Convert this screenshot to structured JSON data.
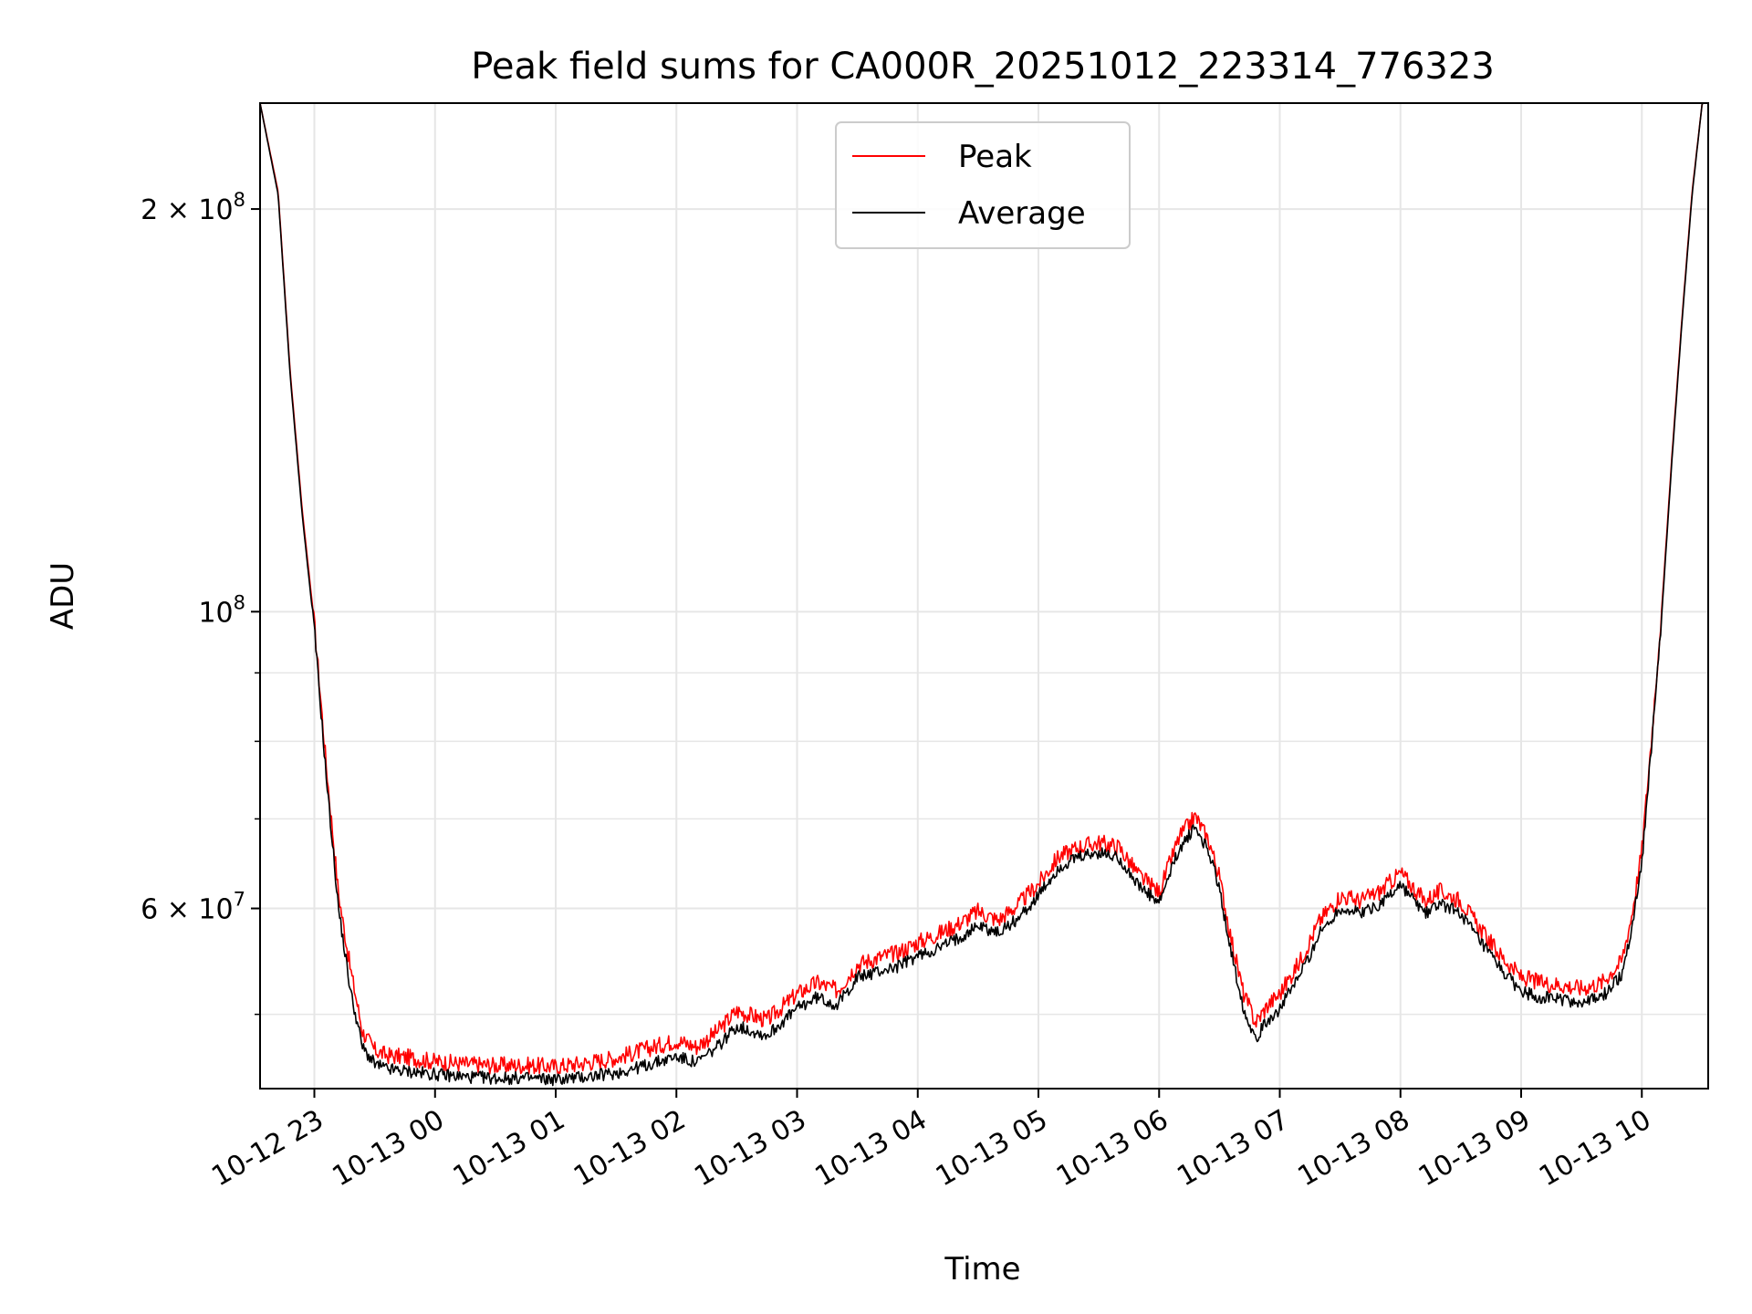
{
  "chart_data": {
    "type": "line",
    "title": "Peak field sums for CA000R_20251012_223314_776323",
    "xlabel": "Time",
    "ylabel": "ADU",
    "yscale": "log",
    "grid": true,
    "legend_position": "top-center",
    "colors": {
      "peak": "#ff0000",
      "average": "#000000",
      "grid": "#e6e6e6"
    },
    "xlim": [
      "2025-10-12 22:33",
      "2025-10-13 10:33"
    ],
    "ylim": [
      44000000,
      240000000
    ],
    "x_ticks": [
      {
        "t": "2025-10-12 23:00",
        "label": "10-12 23"
      },
      {
        "t": "2025-10-13 00:00",
        "label": "10-13 00"
      },
      {
        "t": "2025-10-13 01:00",
        "label": "10-13 01"
      },
      {
        "t": "2025-10-13 02:00",
        "label": "10-13 02"
      },
      {
        "t": "2025-10-13 03:00",
        "label": "10-13 03"
      },
      {
        "t": "2025-10-13 04:00",
        "label": "10-13 04"
      },
      {
        "t": "2025-10-13 05:00",
        "label": "10-13 05"
      },
      {
        "t": "2025-10-13 06:00",
        "label": "10-13 06"
      },
      {
        "t": "2025-10-13 07:00",
        "label": "10-13 07"
      },
      {
        "t": "2025-10-13 08:00",
        "label": "10-13 08"
      },
      {
        "t": "2025-10-13 09:00",
        "label": "10-13 09"
      },
      {
        "t": "2025-10-13 10:00",
        "label": "10-13 10"
      }
    ],
    "y_major_ticks": [
      {
        "value": 60000000,
        "mantissa": "6",
        "exponent": "7"
      },
      {
        "value": 100000000,
        "mantissa": "",
        "exponent": "8"
      },
      {
        "value": 200000000,
        "mantissa": "2",
        "exponent": "8"
      }
    ],
    "y_minor_ticks": [
      50000000,
      70000000,
      80000000,
      90000000
    ],
    "legend": [
      "Peak",
      "Average"
    ],
    "series": [
      {
        "name": "Average",
        "x": [
          "2025-10-12 22:33",
          "2025-10-12 22:42",
          "2025-10-12 22:48",
          "2025-10-12 22:54",
          "2025-10-12 23:00",
          "2025-10-12 23:06",
          "2025-10-12 23:12",
          "2025-10-12 23:18",
          "2025-10-12 23:24",
          "2025-10-12 23:30",
          "2025-10-12 23:36",
          "2025-10-12 23:48",
          "2025-10-13 00:00",
          "2025-10-13 00:15",
          "2025-10-13 00:30",
          "2025-10-13 00:45",
          "2025-10-13 01:00",
          "2025-10-13 01:15",
          "2025-10-13 01:30",
          "2025-10-13 01:45",
          "2025-10-13 02:00",
          "2025-10-13 02:10",
          "2025-10-13 02:20",
          "2025-10-13 02:30",
          "2025-10-13 02:45",
          "2025-10-13 03:00",
          "2025-10-13 03:10",
          "2025-10-13 03:20",
          "2025-10-13 03:30",
          "2025-10-13 03:40",
          "2025-10-13 03:50",
          "2025-10-13 04:00",
          "2025-10-13 04:10",
          "2025-10-13 04:20",
          "2025-10-13 04:30",
          "2025-10-13 04:40",
          "2025-10-13 04:50",
          "2025-10-13 05:00",
          "2025-10-13 05:10",
          "2025-10-13 05:20",
          "2025-10-13 05:30",
          "2025-10-13 05:40",
          "2025-10-13 05:50",
          "2025-10-13 06:00",
          "2025-10-13 06:10",
          "2025-10-13 06:18",
          "2025-10-13 06:25",
          "2025-10-13 06:30",
          "2025-10-13 06:36",
          "2025-10-13 06:42",
          "2025-10-13 06:48",
          "2025-10-13 06:54",
          "2025-10-13 07:00",
          "2025-10-13 07:10",
          "2025-10-13 07:20",
          "2025-10-13 07:30",
          "2025-10-13 07:40",
          "2025-10-13 07:50",
          "2025-10-13 08:00",
          "2025-10-13 08:06",
          "2025-10-13 08:12",
          "2025-10-13 08:20",
          "2025-10-13 08:30",
          "2025-10-13 08:40",
          "2025-10-13 08:50",
          "2025-10-13 09:00",
          "2025-10-13 09:10",
          "2025-10-13 09:20",
          "2025-10-13 09:30",
          "2025-10-13 09:40",
          "2025-10-13 09:50",
          "2025-10-13 09:55",
          "2025-10-13 10:00",
          "2025-10-13 10:05",
          "2025-10-13 10:10",
          "2025-10-13 10:15",
          "2025-10-13 10:20",
          "2025-10-13 10:25",
          "2025-10-13 10:30"
        ],
        "y": [
          240000000,
          205000000,
          150000000,
          118000000,
          97000000,
          75000000,
          60000000,
          52000000,
          47200000,
          45900000,
          45500000,
          45300000,
          45100000,
          44900000,
          44800000,
          44800000,
          44700000,
          44900000,
          45200000,
          45800000,
          46500000,
          46000000,
          47200000,
          49000000,
          48200000,
          50500000,
          51500000,
          50800000,
          53300000,
          53800000,
          54300000,
          55300000,
          56000000,
          57000000,
          58300000,
          57500000,
          59000000,
          61300000,
          64300000,
          65500000,
          66000000,
          65500000,
          62300000,
          60500000,
          66500000,
          69000000,
          66000000,
          62000000,
          55500000,
          50500000,
          48000000,
          49500000,
          50500000,
          53500000,
          57500000,
          60000000,
          59500000,
          60500000,
          62500000,
          61000000,
          59500000,
          60500000,
          59500000,
          56500000,
          54000000,
          52000000,
          51500000,
          51300000,
          51000000,
          51500000,
          53500000,
          58000000,
          65000000,
          80000000,
          100000000,
          130000000,
          165000000,
          205000000,
          240000000
        ]
      },
      {
        "name": "Peak",
        "x": [
          "2025-10-12 22:33",
          "2025-10-12 22:42",
          "2025-10-12 22:48",
          "2025-10-12 22:54",
          "2025-10-12 23:00",
          "2025-10-12 23:06",
          "2025-10-12 23:12",
          "2025-10-12 23:18",
          "2025-10-12 23:24",
          "2025-10-12 23:30",
          "2025-10-12 23:36",
          "2025-10-12 23:48",
          "2025-10-13 00:00",
          "2025-10-13 00:15",
          "2025-10-13 00:30",
          "2025-10-13 00:45",
          "2025-10-13 01:00",
          "2025-10-13 01:15",
          "2025-10-13 01:30",
          "2025-10-13 01:45",
          "2025-10-13 02:00",
          "2025-10-13 02:10",
          "2025-10-13 02:20",
          "2025-10-13 02:30",
          "2025-10-13 02:45",
          "2025-10-13 03:00",
          "2025-10-13 03:10",
          "2025-10-13 03:20",
          "2025-10-13 03:30",
          "2025-10-13 03:40",
          "2025-10-13 03:50",
          "2025-10-13 04:00",
          "2025-10-13 04:10",
          "2025-10-13 04:20",
          "2025-10-13 04:30",
          "2025-10-13 04:40",
          "2025-10-13 04:50",
          "2025-10-13 05:00",
          "2025-10-13 05:10",
          "2025-10-13 05:20",
          "2025-10-13 05:30",
          "2025-10-13 05:40",
          "2025-10-13 05:50",
          "2025-10-13 06:00",
          "2025-10-13 06:10",
          "2025-10-13 06:18",
          "2025-10-13 06:25",
          "2025-10-13 06:30",
          "2025-10-13 06:36",
          "2025-10-13 06:42",
          "2025-10-13 06:48",
          "2025-10-13 06:54",
          "2025-10-13 07:00",
          "2025-10-13 07:10",
          "2025-10-13 07:20",
          "2025-10-13 07:30",
          "2025-10-13 07:40",
          "2025-10-13 07:50",
          "2025-10-13 08:00",
          "2025-10-13 08:06",
          "2025-10-13 08:12",
          "2025-10-13 08:20",
          "2025-10-13 08:30",
          "2025-10-13 08:40",
          "2025-10-13 08:50",
          "2025-10-13 09:00",
          "2025-10-13 09:10",
          "2025-10-13 09:20",
          "2025-10-13 09:30",
          "2025-10-13 09:40",
          "2025-10-13 09:50",
          "2025-10-13 09:55",
          "2025-10-13 10:00",
          "2025-10-13 10:05",
          "2025-10-13 10:10",
          "2025-10-13 10:15",
          "2025-10-13 10:20",
          "2025-10-13 10:25",
          "2025-10-13 10:30"
        ],
        "y": [
          240000000,
          206000000,
          151000000,
          119000000,
          98000000,
          76500000,
          61500000,
          54000000,
          48500000,
          47000000,
          46600000,
          46400000,
          46100000,
          45900000,
          45800000,
          45800000,
          45700000,
          46000000,
          46400000,
          47100000,
          47800000,
          47300000,
          48500000,
          50300000,
          49500000,
          51800000,
          52800000,
          52100000,
          54500000,
          55100000,
          55600000,
          56600000,
          57400000,
          58400000,
          59700000,
          58800000,
          60400000,
          62600000,
          65600000,
          66700000,
          67200000,
          66700000,
          63500000,
          61700000,
          67800000,
          70300000,
          67300000,
          63300000,
          56800000,
          51800000,
          49300000,
          50800000,
          51800000,
          54800000,
          58800000,
          61300000,
          60800000,
          61800000,
          63800000,
          62300000,
          60800000,
          61800000,
          60800000,
          57800000,
          55300000,
          53300000,
          52800000,
          52600000,
          52300000,
          52800000,
          54800000,
          59300000,
          66300000,
          81000000,
          101000000,
          131000000,
          166000000,
          206000000,
          240000000
        ]
      }
    ]
  }
}
